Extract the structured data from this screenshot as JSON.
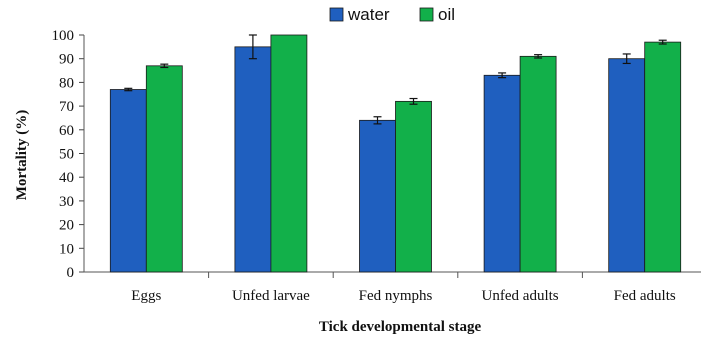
{
  "chart_data": {
    "type": "bar",
    "title": "",
    "xlabel": "Tick developmental stage",
    "ylabel": "Mortality (%)",
    "ylim": [
      0,
      100
    ],
    "yticks": [
      0,
      10,
      20,
      30,
      40,
      50,
      60,
      70,
      80,
      90,
      100
    ],
    "grid": false,
    "legend_position": "top-center",
    "categories": [
      "Eggs",
      "Unfed larvae",
      "Fed nymphs",
      "Unfed adults",
      "Fed adults"
    ],
    "series": [
      {
        "name": "water",
        "color": "#1f5fbf",
        "values": [
          77,
          95,
          64,
          83,
          90
        ],
        "errors": [
          0.5,
          5,
          1.5,
          1,
          2
        ]
      },
      {
        "name": "oil",
        "color": "#12b04a",
        "values": [
          87,
          100,
          72,
          91,
          97
        ],
        "errors": [
          0.7,
          0,
          1.2,
          0.7,
          0.8
        ]
      }
    ]
  }
}
